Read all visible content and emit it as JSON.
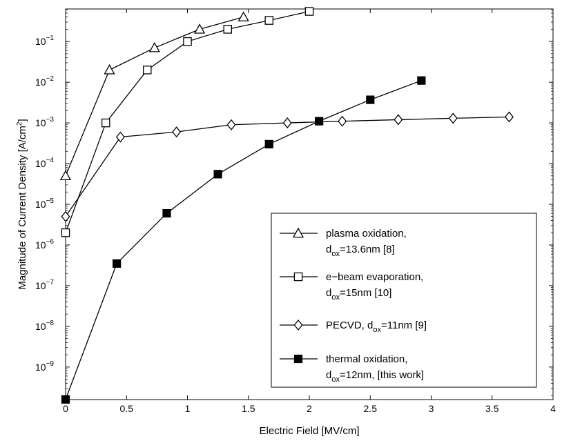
{
  "chart_data": {
    "type": "line",
    "xlabel": "Electric Field [MV/cm]",
    "ylabel_main": "Magnitude of Current Density [A/cm",
    "ylabel_sup": "2",
    "ylabel_end": "]",
    "xlim": [
      0,
      4
    ],
    "ylim_log10": [
      -9.8,
      -0.2
    ],
    "y_scale": "log",
    "x_ticks": [
      {
        "v": 0,
        "label": "0"
      },
      {
        "v": 0.5,
        "label": "0.5"
      },
      {
        "v": 1,
        "label": "1"
      },
      {
        "v": 1.5,
        "label": "1.5"
      },
      {
        "v": 2,
        "label": "2"
      },
      {
        "v": 2.5,
        "label": "2.5"
      },
      {
        "v": 3,
        "label": "3"
      },
      {
        "v": 3.5,
        "label": "3.5"
      },
      {
        "v": 4,
        "label": "4"
      }
    ],
    "y_ticks": [
      {
        "exp": -9,
        "base": "10",
        "sup": "−9"
      },
      {
        "exp": -8,
        "base": "10",
        "sup": "−8"
      },
      {
        "exp": -7,
        "base": "10",
        "sup": "−7"
      },
      {
        "exp": -6,
        "base": "10",
        "sup": "−6"
      },
      {
        "exp": -5,
        "base": "10",
        "sup": "−5"
      },
      {
        "exp": -4,
        "base": "10",
        "sup": "−4"
      },
      {
        "exp": -3,
        "base": "10",
        "sup": "−3"
      },
      {
        "exp": -2,
        "base": "10",
        "sup": "−2"
      },
      {
        "exp": -1,
        "base": "10",
        "sup": "−1"
      }
    ],
    "grid": false,
    "legend_position": "bottom-right",
    "series": [
      {
        "marker": "triangle",
        "legend_lines": [
          {
            "main": "plasma oxidation,",
            "sub": "",
            "rest": ""
          },
          {
            "main": "d",
            "sub": "ox",
            "rest": "=13.6nm [8]"
          }
        ],
        "x": [
          0,
          0.36,
          0.73,
          1.1,
          1.46
        ],
        "y": [
          5e-05,
          0.02,
          0.07,
          0.2,
          0.4
        ]
      },
      {
        "marker": "square",
        "legend_lines": [
          {
            "main": "e−beam evaporation,",
            "sub": "",
            "rest": ""
          },
          {
            "main": "d",
            "sub": "ox",
            "rest": "=15nm [10]"
          }
        ],
        "x": [
          0,
          0.33,
          0.67,
          1.0,
          1.33,
          1.67,
          2.0
        ],
        "y": [
          2e-06,
          0.001,
          0.02,
          0.1,
          0.2,
          0.33,
          0.55
        ]
      },
      {
        "marker": "diamond",
        "legend_lines": [
          {
            "main": " PECVD, d",
            "sub": "ox",
            "rest": "=11nm [9]"
          }
        ],
        "x": [
          0,
          0.45,
          0.91,
          1.36,
          1.82,
          2.27,
          2.73,
          3.18,
          3.64
        ],
        "y": [
          5e-06,
          0.00045,
          0.0006,
          0.0009,
          0.001,
          0.0011,
          0.0012,
          0.0013,
          0.0014
        ]
      },
      {
        "marker": "filled-square",
        "legend_lines": [
          {
            "main": "thermal oxidation,",
            "sub": "",
            "rest": ""
          },
          {
            "main": "d",
            "sub": "ox",
            "rest": "=12nm, [this work]"
          }
        ],
        "x": [
          0,
          0.42,
          0.83,
          1.25,
          1.67,
          2.08,
          2.5,
          2.92
        ],
        "y": [
          1.6e-10,
          3.5e-07,
          6e-06,
          5.5e-05,
          0.0003,
          0.0011,
          0.0037,
          0.011
        ]
      }
    ]
  }
}
